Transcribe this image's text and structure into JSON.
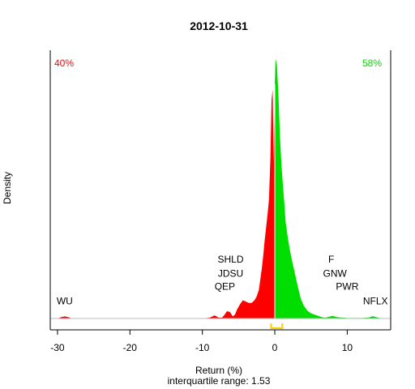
{
  "chart_data": {
    "type": "area",
    "title": "2012-10-31",
    "xlabel": "Return (%)",
    "ylabel": "Density",
    "subtitle": "interquartile range: 1.53",
    "xlim": [
      -31,
      16
    ],
    "ylim": [
      0,
      1
    ],
    "x_ticks": [
      -30,
      -20,
      -10,
      0,
      10
    ],
    "x_tick_labels": [
      "-30",
      "-20",
      "-10",
      "0",
      "10"
    ],
    "split_at": 0,
    "negative_share": "40%",
    "positive_share": "58%",
    "colors": {
      "negative": "#ff0000",
      "positive": "#00dd00",
      "iqr": "#ffcc00",
      "baseline": "#bbbbbb"
    },
    "iqr": {
      "low": -0.5,
      "high": 1.03
    },
    "density": {
      "x": [
        -30.0,
        -29.5,
        -29.0,
        -28.5,
        -28.0,
        -27.0,
        -10.0,
        -9.0,
        -8.3,
        -7.8,
        -7.3,
        -7.0,
        -6.6,
        -6.2,
        -5.8,
        -5.5,
        -5.2,
        -4.8,
        -4.4,
        -4.0,
        -3.6,
        -3.2,
        -2.8,
        -2.5,
        -2.2,
        -2.0,
        -1.8,
        -1.6,
        -1.4,
        -1.2,
        -1.0,
        -0.8,
        -0.6,
        -0.45,
        -0.3,
        -0.15,
        0.0,
        0.1,
        0.3,
        0.5,
        0.7,
        0.9,
        1.1,
        1.3,
        1.5,
        1.8,
        2.1,
        2.4,
        2.8,
        3.2,
        3.6,
        4.0,
        4.5,
        5.0,
        5.5,
        6.0,
        6.5,
        7.0,
        7.5,
        8.0,
        8.5,
        9.0,
        9.5,
        10.0,
        11.0,
        12.0,
        13.0,
        13.5,
        14.0,
        14.5,
        15.0,
        16.0
      ],
      "y": [
        0.0,
        0.005,
        0.008,
        0.005,
        0.0,
        0.0,
        0.0,
        0.003,
        0.012,
        0.004,
        0.003,
        0.012,
        0.028,
        0.025,
        0.008,
        0.015,
        0.035,
        0.055,
        0.07,
        0.065,
        0.06,
        0.06,
        0.07,
        0.085,
        0.11,
        0.15,
        0.19,
        0.24,
        0.3,
        0.35,
        0.4,
        0.46,
        0.62,
        0.84,
        0.88,
        0.6,
        0.9,
        1.0,
        0.97,
        0.86,
        0.71,
        0.6,
        0.52,
        0.45,
        0.37,
        0.31,
        0.26,
        0.22,
        0.17,
        0.12,
        0.075,
        0.05,
        0.03,
        0.02,
        0.015,
        0.01,
        0.005,
        0.003,
        0.007,
        0.01,
        0.006,
        0.004,
        0.003,
        0.002,
        0.002,
        0.002,
        0.004,
        0.009,
        0.005,
        0.002,
        0.0,
        0.0
      ]
    },
    "annotations": [
      {
        "text": "WU",
        "x": -29.0,
        "y": 0.055,
        "color": "#000000"
      },
      {
        "text": "QEP",
        "x": -6.9,
        "y": 0.11,
        "color": "#000000"
      },
      {
        "text": "JDSU",
        "x": -6.1,
        "y": 0.16,
        "color": "#000000"
      },
      {
        "text": "SHLD",
        "x": -6.1,
        "y": 0.215,
        "color": "#000000"
      },
      {
        "text": "F",
        "x": 7.8,
        "y": 0.215,
        "color": "#000000"
      },
      {
        "text": "GNW",
        "x": 8.3,
        "y": 0.16,
        "color": "#000000"
      },
      {
        "text": "PWR",
        "x": 10.0,
        "y": 0.11,
        "color": "#000000"
      },
      {
        "text": "NFLX",
        "x": 13.9,
        "y": 0.055,
        "color": "#000000"
      }
    ]
  }
}
